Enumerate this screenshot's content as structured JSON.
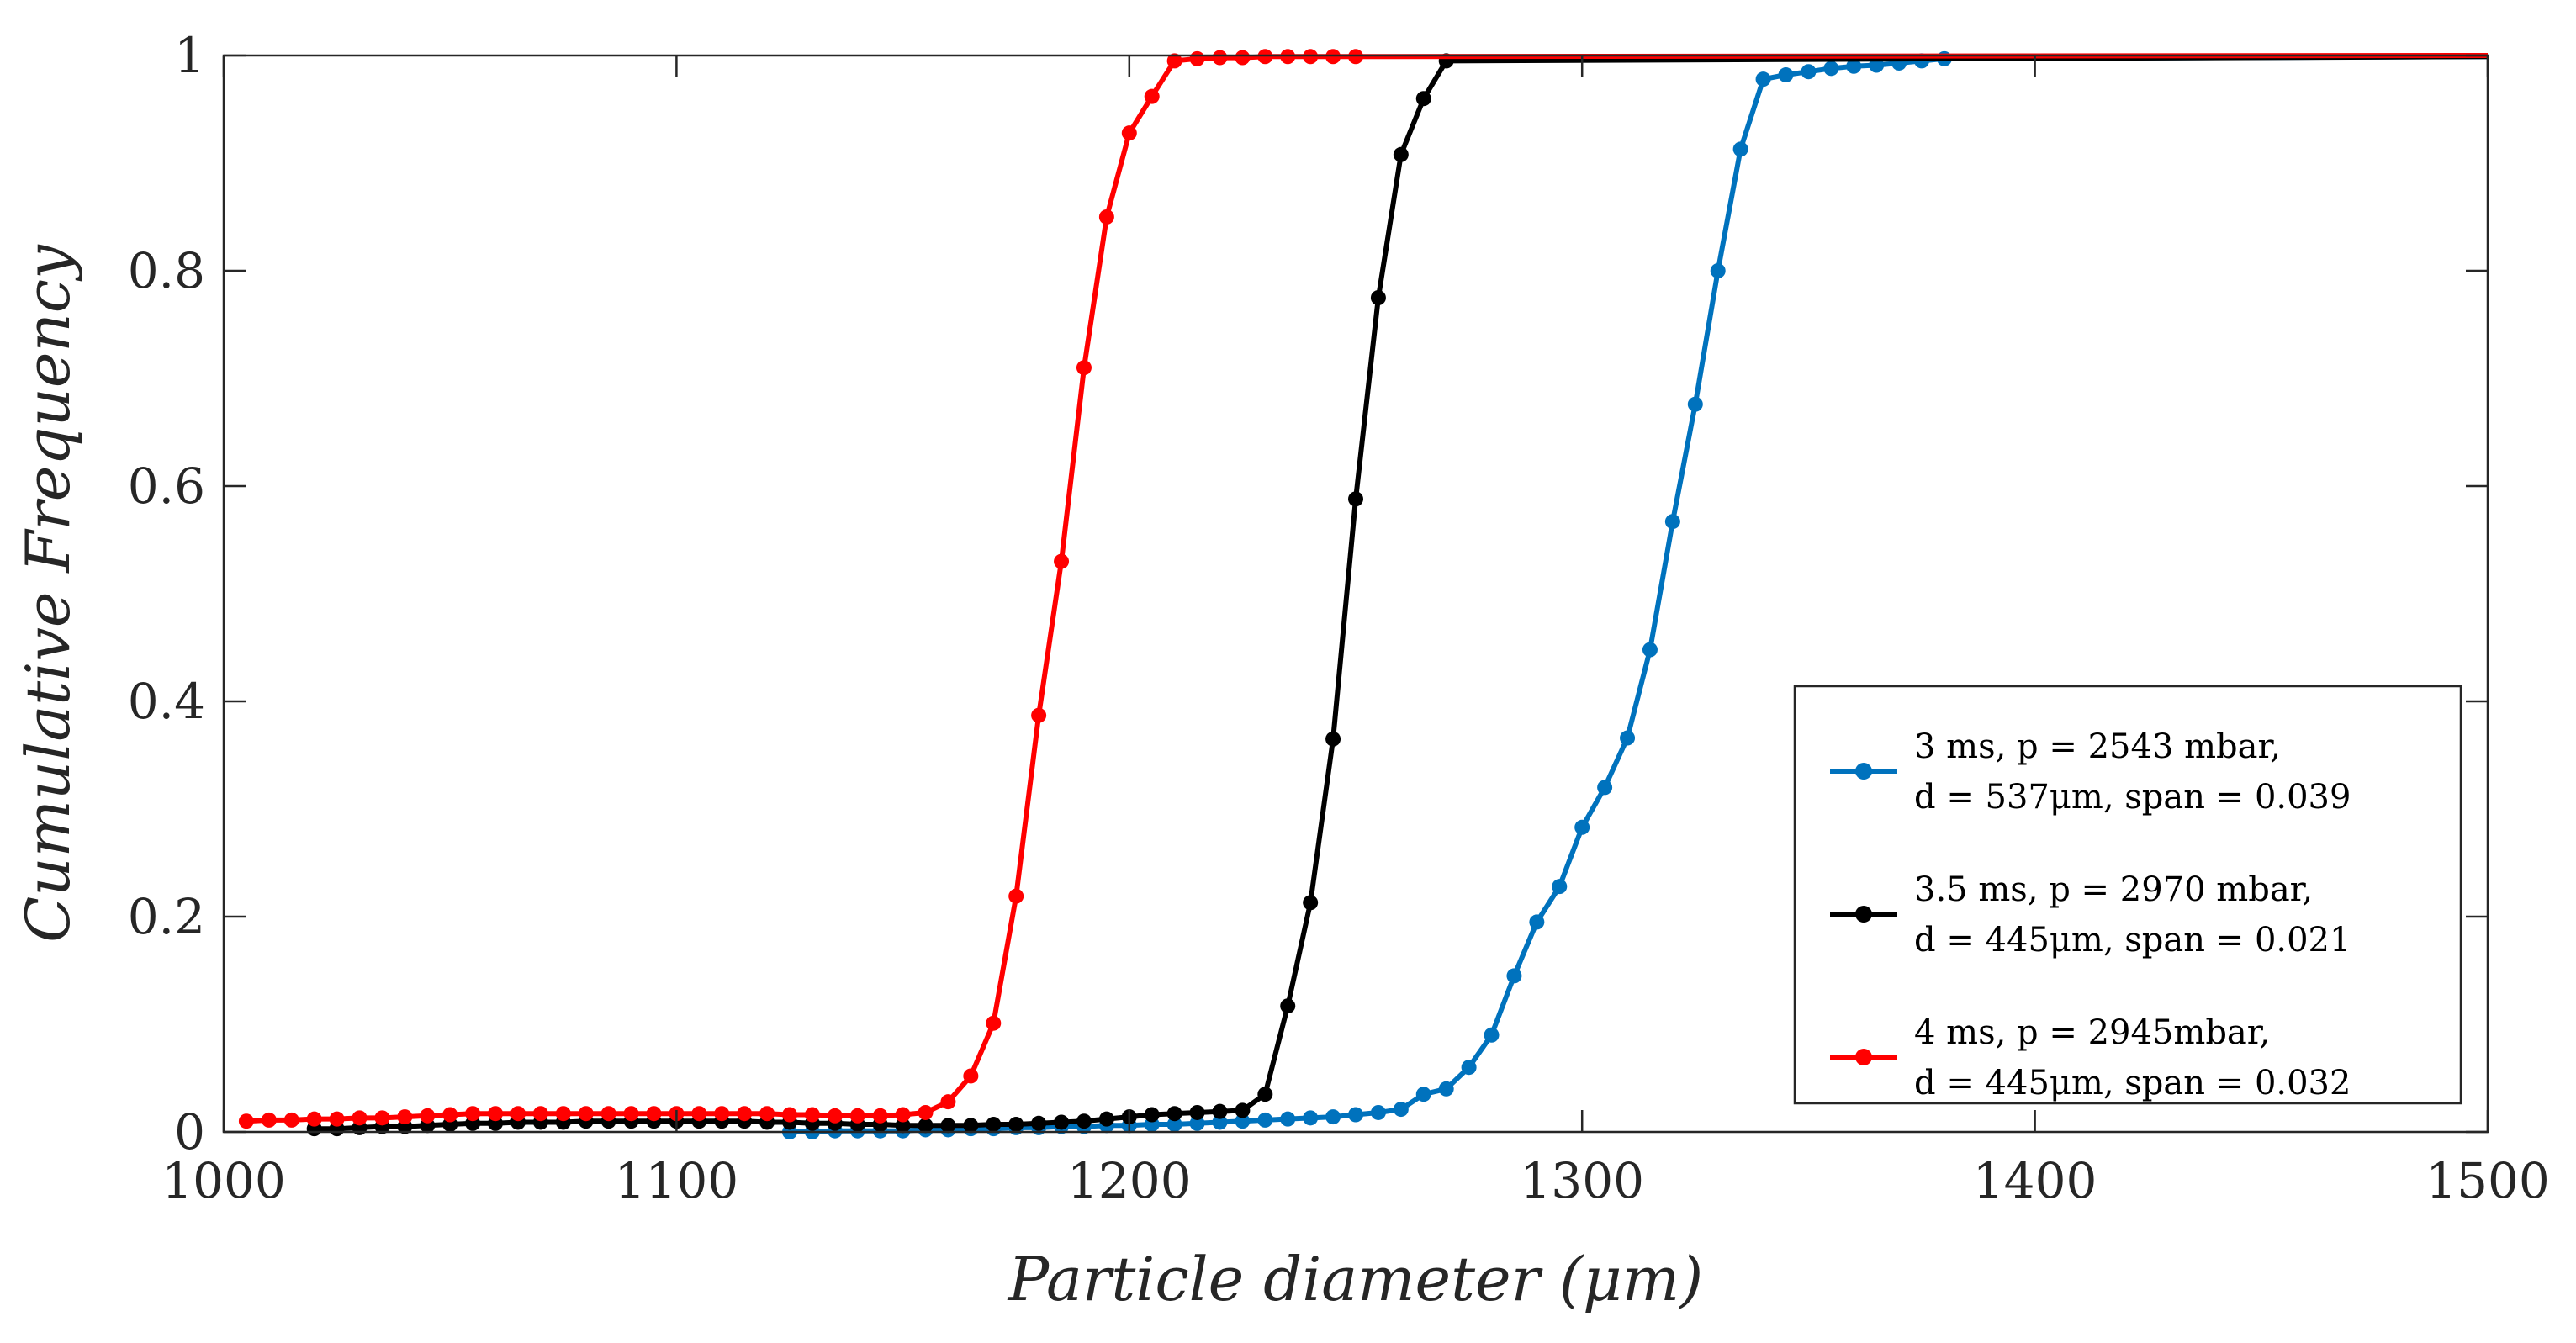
{
  "chart_data": {
    "type": "line",
    "xlabel": "Particle diameter (μm)",
    "ylabel": "Cumulative Frequency",
    "xlim": [
      1000,
      1500
    ],
    "ylim": [
      0,
      1
    ],
    "xticks": [
      1000,
      1100,
      1200,
      1300,
      1400,
      1500
    ],
    "yticks": [
      0,
      0.2,
      0.4,
      0.6,
      0.8,
      1
    ],
    "xtick_labels": [
      "1000",
      "1100",
      "1200",
      "1300",
      "1400",
      "1500"
    ],
    "ytick_labels": [
      "0",
      "0.2",
      "0.4",
      "0.6",
      "0.8",
      "1"
    ],
    "grid": false,
    "legend_position": "lower-right",
    "series": [
      {
        "name": "3 ms, p = 2543 mbar, d = 537μm, span = 0.039",
        "legend_line1": "3 ms, p = 2543 mbar,",
        "legend_line2": "d = 537μm, span = 0.039",
        "color": "#0072BD",
        "x": [
          1125,
          1130,
          1135,
          1140,
          1145,
          1150,
          1155,
          1160,
          1165,
          1170,
          1175,
          1180,
          1185,
          1190,
          1195,
          1200,
          1205,
          1210,
          1215,
          1220,
          1225,
          1230,
          1235,
          1240,
          1245,
          1250,
          1255,
          1260,
          1265,
          1270,
          1275,
          1280,
          1285,
          1290,
          1295,
          1300,
          1305,
          1310,
          1315,
          1320,
          1325,
          1330,
          1335,
          1340,
          1345,
          1350,
          1355,
          1360,
          1365,
          1370,
          1375,
          1380
        ],
        "y": [
          0.0,
          0.0,
          0.001,
          0.001,
          0.001,
          0.001,
          0.002,
          0.002,
          0.003,
          0.003,
          0.004,
          0.004,
          0.005,
          0.005,
          0.006,
          0.006,
          0.007,
          0.007,
          0.008,
          0.009,
          0.01,
          0.011,
          0.012,
          0.013,
          0.014,
          0.016,
          0.018,
          0.021,
          0.035,
          0.04,
          0.06,
          0.09,
          0.145,
          0.195,
          0.228,
          0.283,
          0.32,
          0.366,
          0.448,
          0.567,
          0.676,
          0.8,
          0.913,
          0.978,
          0.982,
          0.985,
          0.988,
          0.99,
          0.991,
          0.993,
          0.995,
          0.997
        ]
      },
      {
        "name": "3.5 ms, p = 2970 mbar, d = 445μm, span = 0.021",
        "legend_line1": "3.5 ms, p = 2970 mbar,",
        "legend_line2": "d = 445μm, span = 0.021",
        "color": "#000000",
        "x": [
          1020,
          1025,
          1030,
          1035,
          1040,
          1045,
          1050,
          1055,
          1060,
          1065,
          1070,
          1075,
          1080,
          1085,
          1090,
          1095,
          1100,
          1105,
          1110,
          1115,
          1120,
          1125,
          1130,
          1135,
          1140,
          1145,
          1150,
          1155,
          1160,
          1165,
          1170,
          1175,
          1180,
          1185,
          1190,
          1195,
          1200,
          1205,
          1210,
          1215,
          1220,
          1225,
          1230,
          1235,
          1240,
          1245,
          1250,
          1255,
          1260,
          1265,
          1270
        ],
        "y": [
          0.003,
          0.003,
          0.004,
          0.005,
          0.005,
          0.006,
          0.007,
          0.008,
          0.008,
          0.009,
          0.009,
          0.009,
          0.01,
          0.01,
          0.01,
          0.01,
          0.01,
          0.01,
          0.01,
          0.01,
          0.009,
          0.009,
          0.008,
          0.008,
          0.007,
          0.007,
          0.006,
          0.006,
          0.006,
          0.006,
          0.007,
          0.007,
          0.008,
          0.009,
          0.01,
          0.012,
          0.014,
          0.016,
          0.017,
          0.018,
          0.019,
          0.02,
          0.035,
          0.117,
          0.213,
          0.365,
          0.588,
          0.775,
          0.908,
          0.96,
          0.995
        ]
      },
      {
        "name": "4 ms, p = 2945mbar, d = 445μm, span = 0.032",
        "legend_line1": "4 ms, p = 2945mbar,",
        "legend_line2": "d = 445μm, span = 0.032",
        "color": "#FF0000",
        "x": [
          1005,
          1010,
          1015,
          1020,
          1025,
          1030,
          1035,
          1040,
          1045,
          1050,
          1055,
          1060,
          1065,
          1070,
          1075,
          1080,
          1085,
          1090,
          1095,
          1100,
          1105,
          1110,
          1115,
          1120,
          1125,
          1130,
          1135,
          1140,
          1145,
          1150,
          1155,
          1160,
          1165,
          1170,
          1175,
          1180,
          1185,
          1190,
          1195,
          1200,
          1205,
          1210,
          1215,
          1220,
          1225,
          1230,
          1235,
          1240,
          1245,
          1250
        ],
        "y": [
          0.01,
          0.011,
          0.011,
          0.012,
          0.012,
          0.013,
          0.013,
          0.014,
          0.015,
          0.016,
          0.017,
          0.017,
          0.017,
          0.017,
          0.017,
          0.017,
          0.017,
          0.017,
          0.017,
          0.017,
          0.017,
          0.017,
          0.017,
          0.017,
          0.016,
          0.016,
          0.015,
          0.015,
          0.015,
          0.016,
          0.018,
          0.028,
          0.052,
          0.101,
          0.219,
          0.387,
          0.53,
          0.71,
          0.85,
          0.928,
          0.962,
          0.995,
          0.997,
          0.998,
          0.998,
          0.999,
          0.999,
          0.999,
          0.999,
          0.999
        ]
      }
    ],
    "final_lines": [
      {
        "series": 0,
        "x": [
          1380,
          1500
        ],
        "y": [
          0.997,
          0.999
        ]
      },
      {
        "series": 1,
        "x": [
          1270,
          1500
        ],
        "y": [
          0.995,
          0.999
        ]
      },
      {
        "series": 2,
        "x": [
          1250,
          1500
        ],
        "y": [
          0.999,
          1.0
        ]
      }
    ]
  }
}
